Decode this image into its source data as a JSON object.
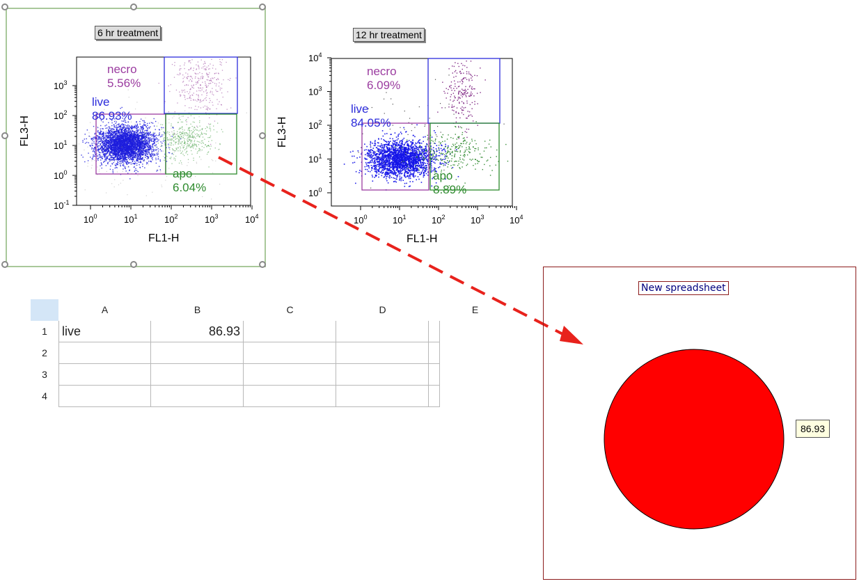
{
  "plots": [
    {
      "title": "6 hr treatment",
      "xlabel": "FL1-H",
      "ylabel": "FL3-H",
      "xticks": [
        "10",
        "10",
        "10",
        "10",
        "10"
      ],
      "xtick_exp": [
        "0",
        "1",
        "2",
        "3",
        "4"
      ],
      "yticks": [
        "10",
        "10",
        "10",
        "10",
        "10"
      ],
      "ytick_exp": [
        "-1",
        "0",
        "1",
        "2",
        "3"
      ],
      "gates": [
        {
          "name": "necro",
          "pct": "5.56%",
          "color": "#9b3ca0"
        },
        {
          "name": "live",
          "pct": "86.93%",
          "color": "#2b2bdb"
        },
        {
          "name": "apo",
          "pct": "6.04%",
          "color": "#2d8a2d"
        }
      ]
    },
    {
      "title": "12 hr treatment",
      "xlabel": "FL1-H",
      "ylabel": "FL3-H",
      "xticks": [
        "10",
        "10",
        "10",
        "10",
        "10"
      ],
      "xtick_exp": [
        "0",
        "1",
        "2",
        "3",
        "4"
      ],
      "yticks": [
        "10",
        "10",
        "10",
        "10",
        "10"
      ],
      "ytick_exp": [
        "0",
        "1",
        "2",
        "3",
        "4"
      ],
      "gates": [
        {
          "name": "necro",
          "pct": "6.09%",
          "color": "#9b3ca0"
        },
        {
          "name": "live",
          "pct": "84.05%",
          "color": "#2b2bdb"
        },
        {
          "name": "apo",
          "pct": "8.89%",
          "color": "#2d8a2d"
        }
      ]
    }
  ],
  "spreadsheet": {
    "columns": [
      "A",
      "B",
      "C",
      "D",
      "E"
    ],
    "rows": [
      "1",
      "2",
      "3",
      "4"
    ],
    "cells": {
      "A1": "live",
      "B1": "86.93"
    }
  },
  "pie_panel": {
    "title": "New spreadsheet",
    "value_label": "86.93",
    "color": "#ff0000"
  },
  "chart_data": {
    "type": "pie",
    "categories": [
      "live"
    ],
    "values": [
      86.93
    ]
  },
  "colors": {
    "arrow": "#e8221c",
    "live": "#2b2bdb",
    "necro": "#9b3ca0",
    "apo": "#2d8a2d"
  }
}
